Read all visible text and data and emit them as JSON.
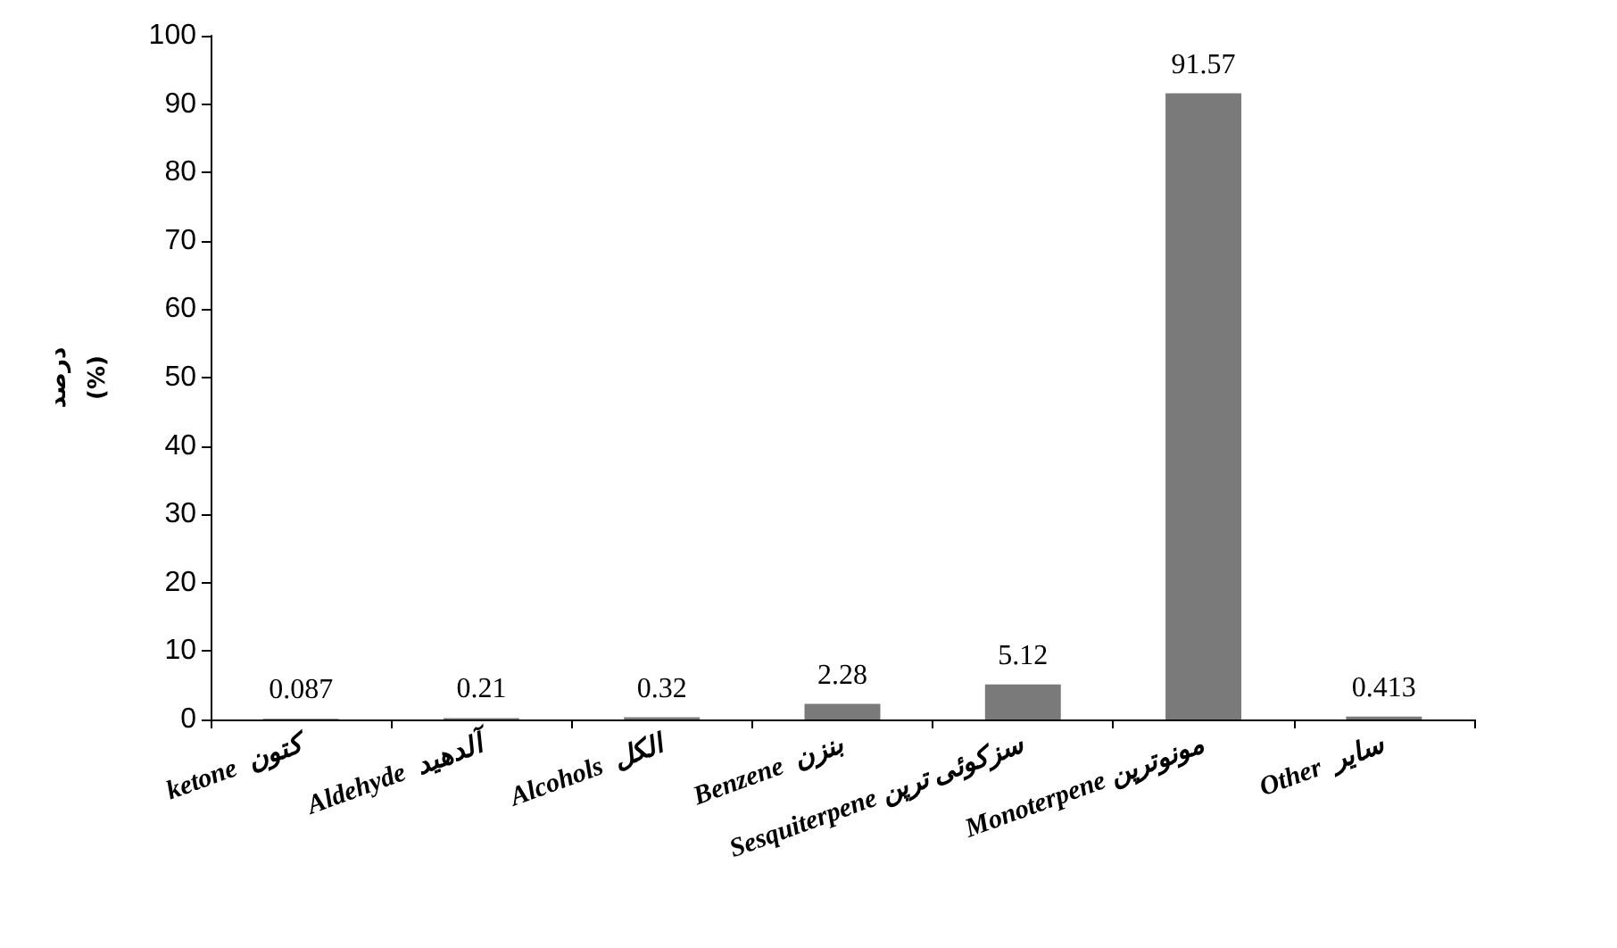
{
  "chart_data": {
    "type": "bar",
    "ylabel": "درصد\n(%)",
    "categories": [
      "ketone  کتون",
      "Aldehyde  آلدهید",
      "Alcohols  الکل",
      "Benzene  بنزن",
      "Sesquiterpene سزکوئی ترپن",
      "Monoterpene مونوترپن",
      "Other  سایر"
    ],
    "values": [
      0.087,
      0.21,
      0.32,
      2.28,
      5.12,
      91.57,
      0.413
    ],
    "color": "#7a7a7a",
    "ylim": [
      0,
      100
    ],
    "yticks": [
      0,
      10,
      20,
      30,
      40,
      50,
      60,
      70,
      80,
      90,
      100
    ],
    "grid": false,
    "data_labels": true
  }
}
